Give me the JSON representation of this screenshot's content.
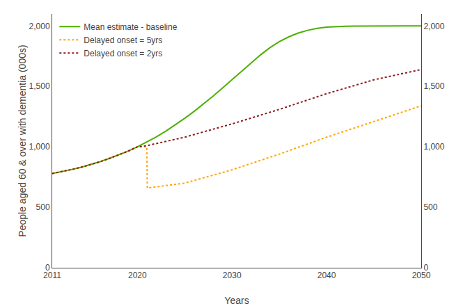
{
  "chart_data": {
    "type": "line",
    "xlabel": "Years",
    "ylabel": "People aged 60 & over with dementia (000s)",
    "xlim": [
      2011,
      2050
    ],
    "xticks": [
      2011,
      2020,
      2030,
      2040,
      2050
    ],
    "ylim": [
      0,
      2100
    ],
    "yticks": [
      0,
      500,
      {
        "value": 1000,
        "label": "1,000"
      },
      {
        "value": 1500,
        "label": "1,500"
      },
      {
        "value": 2000,
        "label": "2,000"
      }
    ],
    "y2lim": [
      0,
      2100
    ],
    "y2ticks": [
      0,
      500,
      {
        "value": 1000,
        "label": "1,000"
      },
      {
        "value": 1500,
        "label": "1,500"
      },
      {
        "value": 2000,
        "label": "2,000"
      }
    ],
    "grid": false,
    "legend": "upper left",
    "series": [
      {
        "name": "Mean estimate - baseline",
        "color": "#4caf00",
        "line_style": "solid",
        "x": [
          2011,
          2012,
          2013,
          2014,
          2015,
          2016,
          2017,
          2018,
          2019,
          2020,
          2021,
          2022,
          2023,
          2024,
          2025,
          2026,
          2027,
          2028,
          2029,
          2030,
          2031,
          2032,
          2033,
          2034,
          2035,
          2036,
          2037,
          2038,
          2039,
          2040,
          2041,
          2042,
          2043,
          2044,
          2045,
          2046,
          2047,
          2048,
          2049,
          2050
        ],
        "values": [
          780,
          795,
          812,
          830,
          852,
          876,
          903,
          932,
          964,
          1000,
          1040,
          1083,
          1130,
          1181,
          1236,
          1294,
          1356,
          1420,
          1487,
          1555,
          1625,
          1695,
          1760,
          1820,
          1870,
          1910,
          1942,
          1964,
          1980,
          1990,
          1995,
          1998,
          2000,
          2001,
          2001,
          2001,
          2001,
          2001,
          2001,
          2001
        ]
      },
      {
        "name": "Delayed onset = 5yrs",
        "color": "#ffa500",
        "line_style": "dotted",
        "x": [
          2011,
          2012,
          2013,
          2014,
          2015,
          2016,
          2017,
          2018,
          2019,
          2020,
          2021,
          2021.05,
          2025,
          2030,
          2035,
          2040,
          2045,
          2050
        ],
        "values": [
          780,
          795,
          812,
          830,
          852,
          876,
          903,
          932,
          964,
          1000,
          1000,
          660,
          700,
          810,
          940,
          1080,
          1210,
          1340
        ]
      },
      {
        "name": "Delayed onset = 2yrs",
        "color": "#8b1a1a",
        "line_style": "dotted",
        "x": [
          2011,
          2012,
          2013,
          2014,
          2015,
          2016,
          2017,
          2018,
          2019,
          2020,
          2021,
          2025,
          2030,
          2035,
          2040,
          2045,
          2050
        ],
        "values": [
          780,
          795,
          812,
          830,
          852,
          876,
          903,
          932,
          964,
          1000,
          1010,
          1080,
          1190,
          1310,
          1440,
          1555,
          1640
        ]
      }
    ]
  }
}
